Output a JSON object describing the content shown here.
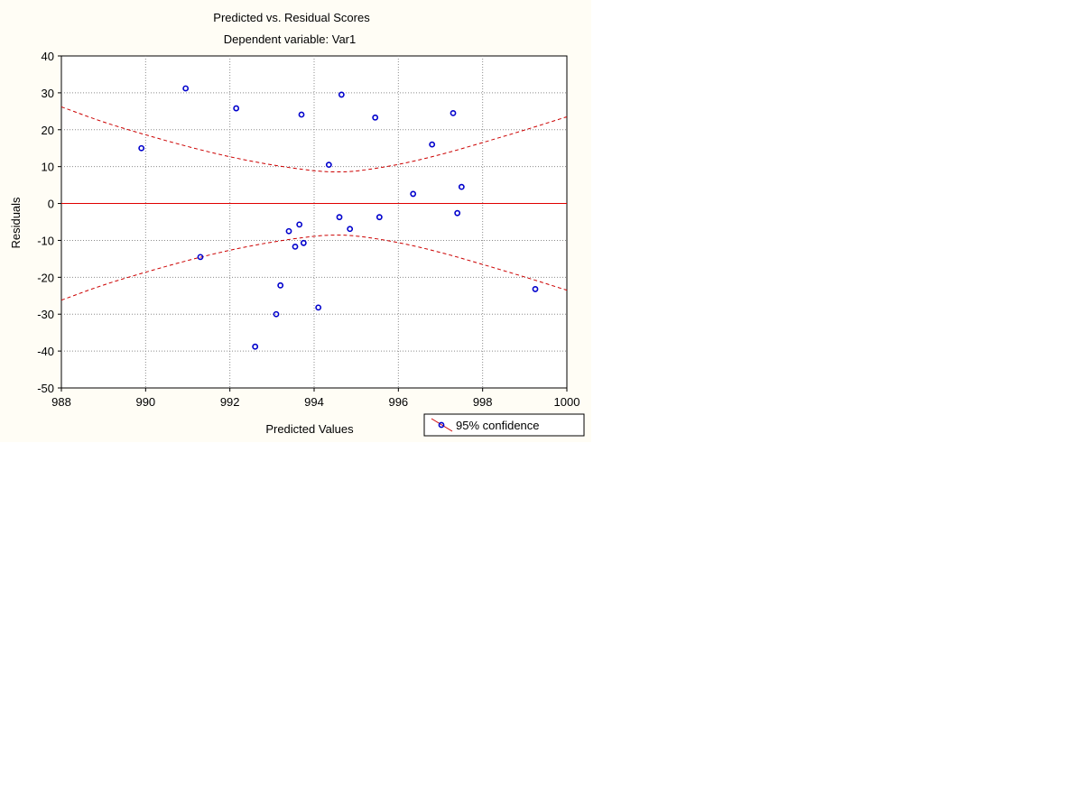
{
  "chart_data": {
    "type": "scatter",
    "title": "Predicted vs. Residual Scores",
    "subtitle": "Dependent variable: Var1",
    "xlabel": "Predicted Values",
    "ylabel": "Residuals",
    "xlim": [
      988,
      1000
    ],
    "ylim": [
      -50,
      40
    ],
    "xticks": [
      988,
      990,
      992,
      994,
      996,
      998,
      1000
    ],
    "yticks": [
      40,
      30,
      20,
      10,
      0,
      -10,
      -20,
      -30,
      -40,
      -50
    ],
    "grid": true,
    "legend": {
      "placement": "bottom-right",
      "label": "95% confidence"
    },
    "colors": {
      "points": "#0000cc",
      "zero_line": "#e00000",
      "confidence": "#cc0000"
    },
    "zero_line": 0,
    "points": [
      {
        "x": 989.9,
        "y": 15.0
      },
      {
        "x": 990.95,
        "y": 31.2
      },
      {
        "x": 991.3,
        "y": -14.5
      },
      {
        "x": 992.15,
        "y": 25.8
      },
      {
        "x": 992.6,
        "y": -38.8
      },
      {
        "x": 993.1,
        "y": -30.0
      },
      {
        "x": 993.2,
        "y": -22.2
      },
      {
        "x": 993.4,
        "y": -7.5
      },
      {
        "x": 993.55,
        "y": -11.7
      },
      {
        "x": 993.65,
        "y": -5.7
      },
      {
        "x": 993.7,
        "y": 24.1
      },
      {
        "x": 993.75,
        "y": -10.7
      },
      {
        "x": 994.1,
        "y": -28.2
      },
      {
        "x": 994.35,
        "y": 10.5
      },
      {
        "x": 994.6,
        "y": -3.7
      },
      {
        "x": 994.65,
        "y": 29.5
      },
      {
        "x": 994.85,
        "y": -6.9
      },
      {
        "x": 995.45,
        "y": 23.3
      },
      {
        "x": 995.55,
        "y": -3.7
      },
      {
        "x": 996.35,
        "y": 2.6
      },
      {
        "x": 996.8,
        "y": 16.0
      },
      {
        "x": 997.3,
        "y": 24.5
      },
      {
        "x": 997.4,
        "y": -2.6
      },
      {
        "x": 997.5,
        "y": 4.5
      },
      {
        "x": 999.25,
        "y": -23.2
      }
    ],
    "confidence_upper": [
      {
        "x": 988,
        "y": 26.2
      },
      {
        "x": 989,
        "y": 22.0
      },
      {
        "x": 990,
        "y": 18.6
      },
      {
        "x": 991,
        "y": 15.4
      },
      {
        "x": 992,
        "y": 12.6
      },
      {
        "x": 993,
        "y": 10.4
      },
      {
        "x": 994,
        "y": 8.8
      },
      {
        "x": 994.5,
        "y": 8.5
      },
      {
        "x": 995,
        "y": 8.7
      },
      {
        "x": 996,
        "y": 10.5
      },
      {
        "x": 997,
        "y": 13.2
      },
      {
        "x": 998,
        "y": 16.5
      },
      {
        "x": 999,
        "y": 19.9
      },
      {
        "x": 1000,
        "y": 23.5
      }
    ],
    "confidence_lower": [
      {
        "x": 988,
        "y": -26.2
      },
      {
        "x": 989,
        "y": -22.0
      },
      {
        "x": 990,
        "y": -18.6
      },
      {
        "x": 991,
        "y": -15.4
      },
      {
        "x": 992,
        "y": -12.6
      },
      {
        "x": 993,
        "y": -10.4
      },
      {
        "x": 994,
        "y": -8.8
      },
      {
        "x": 994.5,
        "y": -8.5
      },
      {
        "x": 995,
        "y": -8.7
      },
      {
        "x": 996,
        "y": -10.5
      },
      {
        "x": 997,
        "y": -13.2
      },
      {
        "x": 998,
        "y": -16.5
      },
      {
        "x": 999,
        "y": -19.9
      },
      {
        "x": 1000,
        "y": -23.5
      }
    ]
  }
}
